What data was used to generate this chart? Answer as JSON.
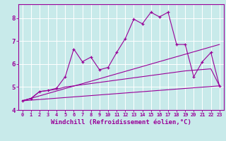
{
  "background_color": "#c8eaea",
  "grid_color": "#ffffff",
  "line_color": "#990099",
  "xlim": [
    -0.5,
    23.5
  ],
  "ylim": [
    4.0,
    8.6
  ],
  "xlabel": "Windchill (Refroidissement éolien,°C)",
  "xlabel_fontsize": 6.5,
  "xtick_labels": [
    "0",
    "1",
    "2",
    "3",
    "4",
    "5",
    "6",
    "7",
    "8",
    "9",
    "10",
    "11",
    "12",
    "13",
    "14",
    "15",
    "16",
    "17",
    "18",
    "19",
    "20",
    "21",
    "22",
    "23"
  ],
  "ytick_values": [
    4,
    5,
    6,
    7,
    8
  ],
  "series1_x": [
    0,
    1,
    2,
    3,
    4,
    5,
    6,
    7,
    8,
    9,
    10,
    11,
    12,
    13,
    14,
    15,
    16,
    17,
    18,
    19,
    20,
    21,
    22,
    23
  ],
  "series1_y": [
    4.4,
    4.5,
    4.8,
    4.85,
    4.95,
    5.45,
    6.65,
    6.1,
    6.3,
    5.75,
    5.85,
    6.5,
    7.1,
    7.95,
    7.75,
    8.25,
    8.05,
    8.25,
    6.85,
    6.85,
    5.45,
    6.1,
    6.5,
    5.05
  ],
  "series2_x": [
    0,
    1,
    2,
    3,
    4,
    5,
    6,
    7,
    8,
    9,
    10,
    11,
    12,
    13,
    14,
    15,
    16,
    17,
    18,
    19,
    20,
    21,
    22,
    23
  ],
  "series2_y": [
    4.4,
    4.5,
    4.8,
    4.85,
    4.9,
    5.0,
    5.05,
    5.1,
    5.15,
    5.2,
    5.25,
    5.3,
    5.35,
    5.4,
    5.45,
    5.5,
    5.55,
    5.6,
    5.65,
    5.7,
    5.73,
    5.76,
    5.79,
    5.05
  ],
  "series3_x": [
    0,
    23
  ],
  "series3_y": [
    4.4,
    6.85
  ],
  "series4_x": [
    0,
    23
  ],
  "series4_y": [
    4.4,
    5.05
  ]
}
